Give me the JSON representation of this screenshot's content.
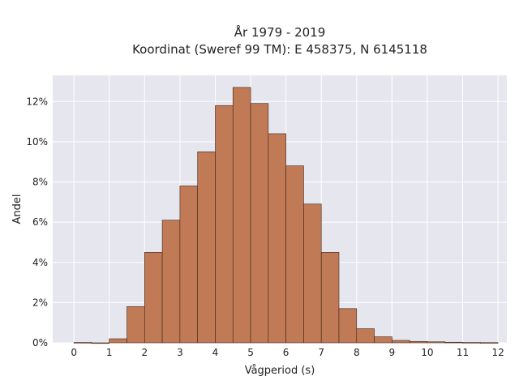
{
  "chart_data": {
    "type": "bar",
    "title_lines": [
      "År 1979 - 2019",
      "Koordinat (Sweref 99 TM): E 458375, N 6145118"
    ],
    "xlabel": "Vågperiod (s)",
    "ylabel": "Andel",
    "bin_width": 0.5,
    "bin_starts": [
      0,
      0.5,
      1,
      1.5,
      2,
      2.5,
      3,
      3.5,
      4,
      4.5,
      5,
      5.5,
      6,
      6.5,
      7,
      7.5,
      8,
      8.5,
      9,
      9.5,
      10,
      10.5,
      11,
      11.5
    ],
    "values": [
      0.02,
      0.0,
      0.2,
      1.8,
      4.5,
      6.1,
      7.8,
      9.5,
      11.8,
      12.7,
      11.9,
      10.4,
      8.8,
      6.9,
      4.5,
      1.7,
      0.7,
      0.3,
      0.12,
      0.07,
      0.05,
      0.03,
      0.02,
      0.01
    ],
    "xlim": [
      -0.6,
      12.25
    ],
    "ylim": [
      0,
      13.3
    ],
    "xticks": [
      0,
      1,
      2,
      3,
      4,
      5,
      6,
      7,
      8,
      9,
      10,
      11,
      12
    ],
    "xtick_labels": [
      "0",
      "1",
      "2",
      "3",
      "4",
      "5",
      "6",
      "7",
      "8",
      "9",
      "10",
      "11",
      "12"
    ],
    "yticks": [
      0,
      2,
      4,
      6,
      8,
      10,
      12
    ],
    "ytick_labels": [
      "0%",
      "2%",
      "4%",
      "6%",
      "8%",
      "10%",
      "12%"
    ],
    "grid": true,
    "colors": {
      "bar_fill": "#c07b56",
      "bar_edge": "#3d2418",
      "plot_bg": "#e6e6ef",
      "grid": "#ffffff"
    }
  }
}
